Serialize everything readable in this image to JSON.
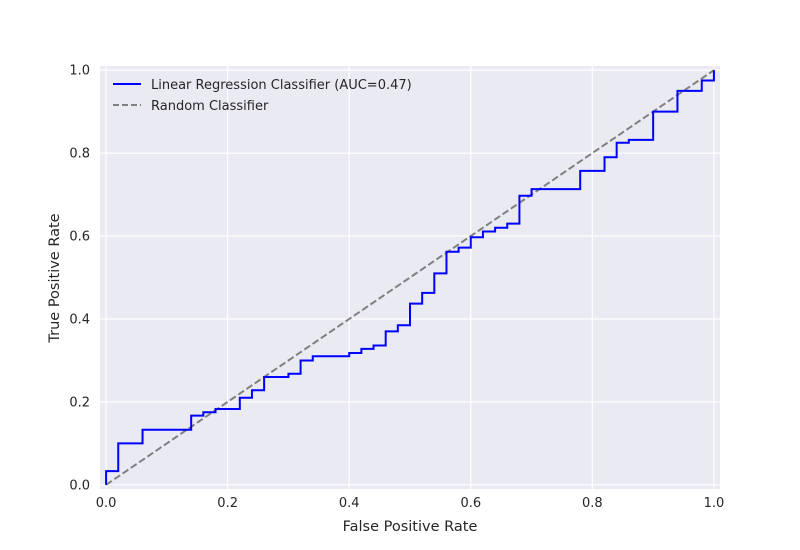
{
  "chart_data": {
    "type": "line",
    "title": "",
    "xlabel": "False Positive Rate",
    "ylabel": "True Positive Rate",
    "xlim": [
      -0.01,
      1.01
    ],
    "ylim": [
      -0.01,
      1.01
    ],
    "x_ticks": [
      "0.0",
      "0.2",
      "0.4",
      "0.6",
      "0.8",
      "1.0"
    ],
    "y_ticks": [
      "0.0",
      "0.2",
      "0.4",
      "0.6",
      "0.8",
      "1.0"
    ],
    "grid": true,
    "legend_position": "upper-left",
    "series": [
      {
        "name": "Linear Regression Classifier (AUC=0.47)",
        "color": "#0000ff",
        "style": "solid",
        "points": [
          [
            0.0,
            0.0
          ],
          [
            0.0,
            0.033
          ],
          [
            0.02,
            0.033
          ],
          [
            0.02,
            0.1
          ],
          [
            0.06,
            0.1
          ],
          [
            0.06,
            0.133
          ],
          [
            0.14,
            0.133
          ],
          [
            0.14,
            0.167
          ],
          [
            0.16,
            0.167
          ],
          [
            0.16,
            0.175
          ],
          [
            0.18,
            0.175
          ],
          [
            0.18,
            0.183
          ],
          [
            0.22,
            0.183
          ],
          [
            0.22,
            0.21
          ],
          [
            0.24,
            0.21
          ],
          [
            0.24,
            0.228
          ],
          [
            0.26,
            0.228
          ],
          [
            0.26,
            0.26
          ],
          [
            0.3,
            0.26
          ],
          [
            0.3,
            0.268
          ],
          [
            0.32,
            0.268
          ],
          [
            0.32,
            0.3
          ],
          [
            0.34,
            0.3
          ],
          [
            0.34,
            0.31
          ],
          [
            0.4,
            0.31
          ],
          [
            0.4,
            0.318
          ],
          [
            0.42,
            0.318
          ],
          [
            0.42,
            0.328
          ],
          [
            0.44,
            0.328
          ],
          [
            0.44,
            0.336
          ],
          [
            0.46,
            0.336
          ],
          [
            0.46,
            0.37
          ],
          [
            0.48,
            0.37
          ],
          [
            0.48,
            0.385
          ],
          [
            0.5,
            0.385
          ],
          [
            0.5,
            0.437
          ],
          [
            0.52,
            0.437
          ],
          [
            0.52,
            0.463
          ],
          [
            0.54,
            0.463
          ],
          [
            0.54,
            0.51
          ],
          [
            0.56,
            0.51
          ],
          [
            0.56,
            0.562
          ],
          [
            0.58,
            0.562
          ],
          [
            0.58,
            0.572
          ],
          [
            0.6,
            0.572
          ],
          [
            0.6,
            0.597
          ],
          [
            0.62,
            0.597
          ],
          [
            0.62,
            0.611
          ],
          [
            0.64,
            0.611
          ],
          [
            0.64,
            0.62
          ],
          [
            0.66,
            0.62
          ],
          [
            0.66,
            0.63
          ],
          [
            0.68,
            0.63
          ],
          [
            0.68,
            0.697
          ],
          [
            0.7,
            0.697
          ],
          [
            0.7,
            0.713
          ],
          [
            0.78,
            0.713
          ],
          [
            0.78,
            0.757
          ],
          [
            0.82,
            0.757
          ],
          [
            0.82,
            0.79
          ],
          [
            0.84,
            0.79
          ],
          [
            0.84,
            0.825
          ],
          [
            0.86,
            0.825
          ],
          [
            0.86,
            0.832
          ],
          [
            0.9,
            0.832
          ],
          [
            0.9,
            0.9
          ],
          [
            0.94,
            0.9
          ],
          [
            0.94,
            0.95
          ],
          [
            0.98,
            0.95
          ],
          [
            0.98,
            0.975
          ],
          [
            1.0,
            0.975
          ],
          [
            1.0,
            1.0
          ]
        ]
      },
      {
        "name": "Random Classifier",
        "color": "#808080",
        "style": "dashed",
        "points": [
          [
            0.0,
            0.0
          ],
          [
            1.0,
            1.0
          ]
        ]
      }
    ]
  }
}
